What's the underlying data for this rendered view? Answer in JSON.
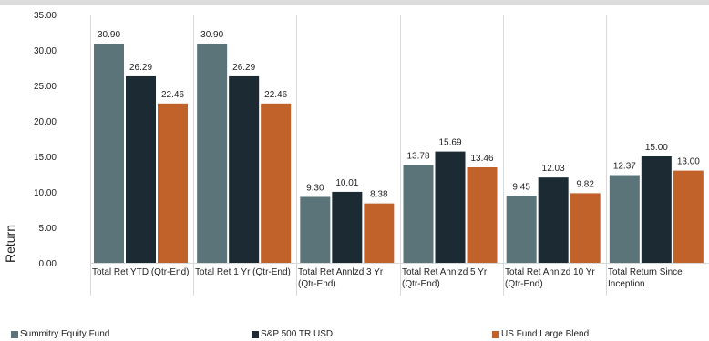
{
  "chart_data": {
    "type": "bar",
    "title": "",
    "xlabel": "",
    "ylabel": "Return",
    "ylim": [
      0,
      35
    ],
    "yticks": [
      "0.00",
      "5.00",
      "10.00",
      "15.00",
      "20.00",
      "25.00",
      "30.00",
      "35.00"
    ],
    "grid": "vertical separators",
    "legend_position": "bottom",
    "categories": [
      "Total Ret YTD (Qtr-End)",
      "Total Ret 1 Yr (Qtr-End)",
      "Total Ret Annlzd 3 Yr (Qtr-End)",
      "Total Ret Annlzd 5 Yr (Qtr-End)",
      "Total Ret Annlzd 10 Yr (Qtr-End)",
      "Total Return Since Inception"
    ],
    "series": [
      {
        "name": "Summitry Equity Fund",
        "color": "#5b7479",
        "values": [
          30.9,
          30.9,
          9.3,
          13.78,
          9.45,
          12.37
        ],
        "labels": [
          "30.90",
          "30.90",
          "9.30",
          "13.78",
          "9.45",
          "12.37"
        ]
      },
      {
        "name": "S&P 500 TR USD",
        "color": "#1b2a33",
        "values": [
          26.29,
          26.29,
          10.01,
          15.69,
          12.03,
          15.0
        ],
        "labels": [
          "26.29",
          "26.29",
          "10.01",
          "15.69",
          "12.03",
          "15.00"
        ]
      },
      {
        "name": "US Fund Large Blend",
        "color": "#c0622a",
        "values": [
          22.46,
          22.46,
          8.38,
          13.46,
          9.82,
          13.0
        ],
        "labels": [
          "22.46",
          "22.46",
          "8.38",
          "13.46",
          "9.82",
          "13.00"
        ]
      }
    ]
  }
}
